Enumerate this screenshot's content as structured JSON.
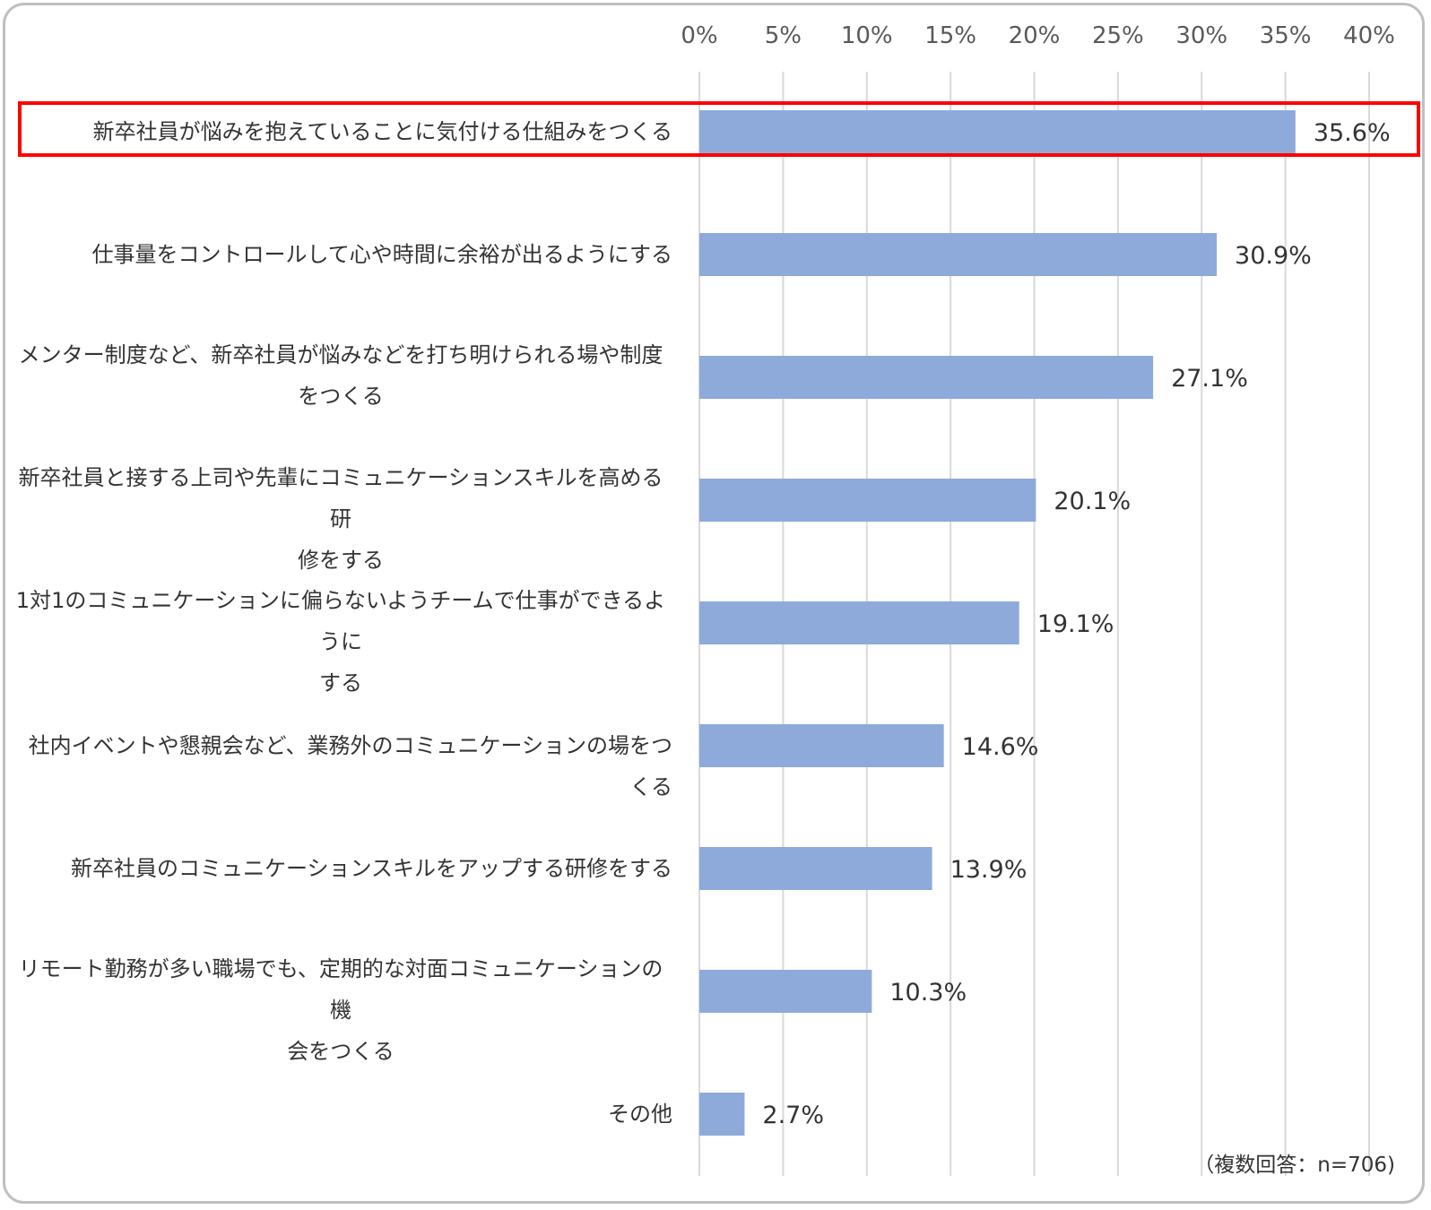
{
  "chart_data": {
    "type": "bar",
    "orientation": "horizontal",
    "categories": [
      "新卒社員が悩みを抱えていることに気付ける仕組みをつくる",
      "仕事量をコントロールして心や時間に余裕が出るようにする",
      "メンター制度など、新卒社員が悩みなどを打ち明けられる場や制度をつくる",
      "新卒社員と接する上司や先輩にコミュニケーションスキルを高める研修をする",
      "1対1のコミュニケーションに偏らないようチームで仕事ができるようにする",
      "社内イベントや懇親会など、業務外のコミュニケーションの場をつくる",
      "新卒社員のコミュニケーションスキルをアップする研修をする",
      "リモート勤務が多い職場でも、定期的な対面コミュニケーションの機会をつくる",
      "その他"
    ],
    "category_lines": [
      [
        "新卒社員が悩みを抱えていることに気付ける仕組みをつくる"
      ],
      [
        "仕事量をコントロールして心や時間に余裕が出るようにする"
      ],
      [
        "メンター制度など、新卒社員が悩みなどを打ち明けられる場や制度",
        "をつくる"
      ],
      [
        "新卒社員と接する上司や先輩にコミュニケーションスキルを高める研",
        "修をする"
      ],
      [
        "1対1のコミュニケーションに偏らないようチームで仕事ができるように",
        "する"
      ],
      [
        "社内イベントや懇親会など、業務外のコミュニケーションの場をつくる"
      ],
      [
        "新卒社員のコミュニケーションスキルをアップする研修をする"
      ],
      [
        "リモート勤務が多い職場でも、定期的な対面コミュニケーションの機",
        "会をつくる"
      ],
      [
        "その他"
      ]
    ],
    "values": [
      35.6,
      30.9,
      27.1,
      20.1,
      19.1,
      14.6,
      13.9,
      10.3,
      2.7
    ],
    "value_labels": [
      "35.6%",
      "30.9%",
      "27.1%",
      "20.1%",
      "19.1%",
      "14.6%",
      "13.9%",
      "10.3%",
      "2.7%"
    ],
    "xlim": [
      0,
      40
    ],
    "xticks": [
      0,
      5,
      10,
      15,
      20,
      25,
      30,
      35,
      40
    ],
    "xtick_labels": [
      "0%",
      "5%",
      "10%",
      "15%",
      "20%",
      "25%",
      "30%",
      "35%",
      "40%"
    ],
    "grid": "vertical",
    "axis_position": "top",
    "highlighted_category_index": 0,
    "colors": {
      "bar": "#8eaadb",
      "grid": "#d9d9d9",
      "highlight": "#ff0000",
      "text": "#333333",
      "tick_text": "#595959"
    }
  },
  "note": "（複数回答：n=706)"
}
